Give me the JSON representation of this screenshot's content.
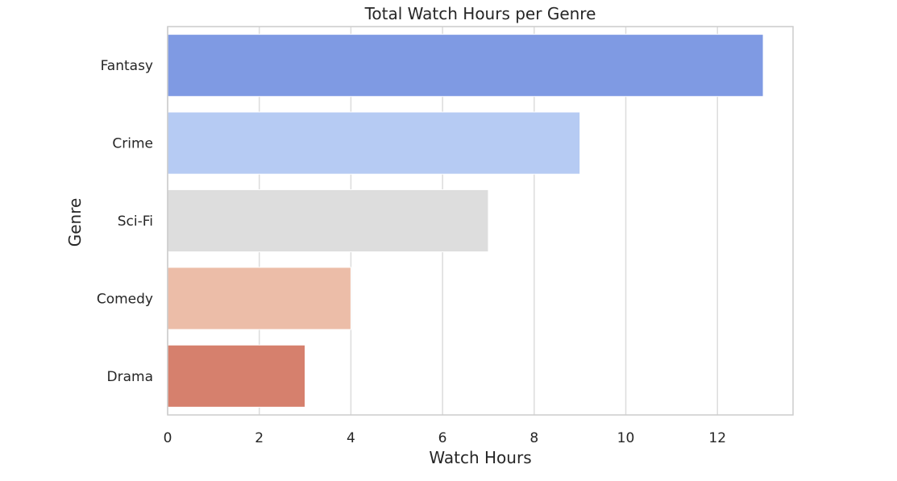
{
  "chart_data": {
    "type": "bar",
    "orientation": "horizontal",
    "title": "Total Watch Hours per Genre",
    "xlabel": "Watch Hours",
    "ylabel": "Genre",
    "categories": [
      "Fantasy",
      "Crime",
      "Sci-Fi",
      "Comedy",
      "Drama"
    ],
    "values": [
      13,
      9,
      7,
      4,
      3
    ],
    "colors": [
      "#7f9ae3",
      "#b6cbf3",
      "#dddddd",
      "#ecbda8",
      "#d6806d"
    ],
    "xlim": [
      0,
      13.65
    ],
    "xticks": [
      0,
      2,
      4,
      6,
      8,
      10,
      12
    ],
    "grid": true,
    "legend": "none"
  }
}
